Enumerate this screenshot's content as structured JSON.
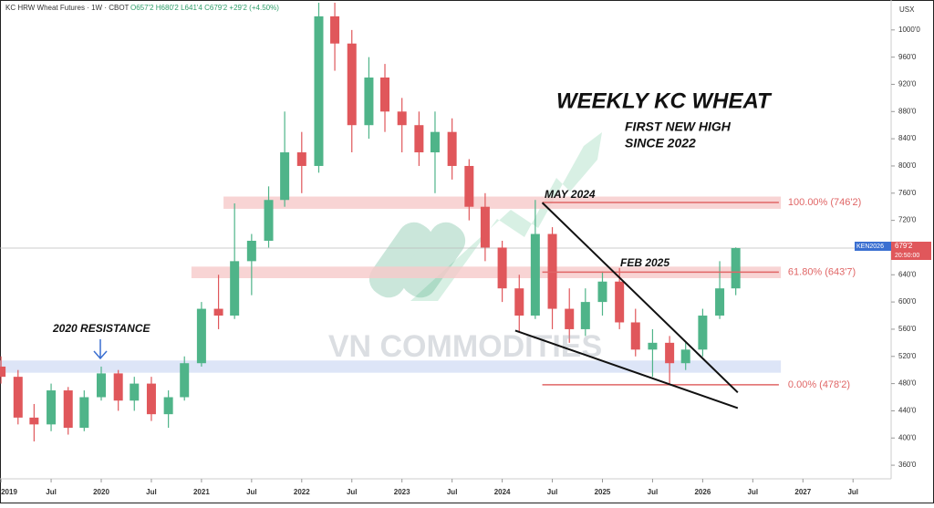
{
  "chart_data": {
    "type": "candlestick",
    "header": "KC HRW Wheat Futures · 1W · CBOT",
    "header_ohlc": "O657'2 H680'2 L641'4 C679'2 +29'2 (+4.50%)",
    "currency": "USX",
    "title": "WEEKLY KC WHEAT",
    "subtitle_lines": [
      "FIRST NEW HIGH",
      "SINCE 2022"
    ],
    "annotations": [
      "MAY 2024",
      "FEB 2025",
      "2020 RESISTANCE"
    ],
    "watermark": "VN COMMODITIES",
    "up_color": "#4fb489",
    "down_color": "#e0575b",
    "xlim": [
      2018.99,
      2027.88
    ],
    "ylim": [
      340,
      1044
    ],
    "xticks": [
      {
        "value": 2019,
        "label": "2019"
      },
      {
        "value": 2019.5,
        "label": "Jul"
      },
      {
        "value": 2020,
        "label": "2020"
      },
      {
        "value": 2020.5,
        "label": "Jul"
      },
      {
        "value": 2021,
        "label": "2021"
      },
      {
        "value": 2021.5,
        "label": "Jul"
      },
      {
        "value": 2022,
        "label": "2022"
      },
      {
        "value": 2022.5,
        "label": "Jul"
      },
      {
        "value": 2023,
        "label": "2023"
      },
      {
        "value": 2023.5,
        "label": "Jul"
      },
      {
        "value": 2024,
        "label": "2024"
      },
      {
        "value": 2024.5,
        "label": "Jul"
      },
      {
        "value": 2025,
        "label": "2025"
      },
      {
        "value": 2025.5,
        "label": "Jul"
      },
      {
        "value": 2026,
        "label": "2026"
      },
      {
        "value": 2026.5,
        "label": "Jul"
      },
      {
        "value": 2027,
        "label": "2027"
      },
      {
        "value": 2027.5,
        "label": "Jul"
      }
    ],
    "yticks": [
      {
        "value": 360,
        "label": "360'0"
      },
      {
        "value": 400,
        "label": "400'0"
      },
      {
        "value": 440,
        "label": "440'0"
      },
      {
        "value": 480,
        "label": "480'0"
      },
      {
        "value": 520,
        "label": "520'0"
      },
      {
        "value": 560,
        "label": "560'0"
      },
      {
        "value": 600,
        "label": "600'0"
      },
      {
        "value": 640,
        "label": "640'0"
      },
      {
        "value": 680,
        "label": "680'0"
      },
      {
        "value": 720,
        "label": "720'0"
      },
      {
        "value": 760,
        "label": "760'0"
      },
      {
        "value": 800,
        "label": "800'0"
      },
      {
        "value": 840,
        "label": "840'0"
      },
      {
        "value": 880,
        "label": "880'0"
      },
      {
        "value": 920,
        "label": "920'0"
      },
      {
        "value": 960,
        "label": "960'0"
      },
      {
        "value": 1000,
        "label": "1000'0"
      }
    ],
    "candles": {
      "x": [
        2019.0,
        2019.17,
        2019.33,
        2019.5,
        2019.67,
        2019.83,
        2020.0,
        2020.17,
        2020.33,
        2020.5,
        2020.67,
        2020.83,
        2021.0,
        2021.17,
        2021.33,
        2021.5,
        2021.67,
        2021.83,
        2022.0,
        2022.17,
        2022.33,
        2022.5,
        2022.67,
        2022.83,
        2023.0,
        2023.17,
        2023.33,
        2023.5,
        2023.67,
        2023.83,
        2024.0,
        2024.17,
        2024.33,
        2024.5,
        2024.67,
        2024.83,
        2025.0,
        2025.17,
        2025.33,
        2025.5,
        2025.67,
        2025.83,
        2026.0,
        2026.17,
        2026.33
      ],
      "open": [
        505,
        490,
        430,
        420,
        470,
        415,
        460,
        495,
        455,
        480,
        435,
        460,
        510,
        590,
        580,
        660,
        690,
        750,
        820,
        800,
        1020,
        980,
        860,
        930,
        880,
        860,
        820,
        850,
        800,
        740,
        680,
        620,
        580,
        700,
        590,
        560,
        600,
        630,
        570,
        530,
        540,
        510,
        530,
        580,
        620
      ],
      "high": [
        520,
        500,
        450,
        480,
        475,
        470,
        505,
        500,
        490,
        490,
        470,
        520,
        600,
        640,
        745,
        700,
        770,
        880,
        850,
        1040,
        1040,
        1000,
        960,
        950,
        900,
        880,
        880,
        870,
        810,
        760,
        690,
        640,
        750,
        710,
        620,
        620,
        645,
        650,
        590,
        560,
        550,
        540,
        590,
        660,
        680.25
      ],
      "low": [
        480,
        420,
        395,
        410,
        405,
        410,
        455,
        440,
        440,
        425,
        415,
        455,
        505,
        560,
        575,
        610,
        680,
        740,
        760,
        790,
        940,
        820,
        840,
        850,
        820,
        800,
        760,
        780,
        720,
        660,
        600,
        555,
        575,
        560,
        540,
        550,
        580,
        560,
        520,
        490,
        480,
        500,
        520,
        575,
        610
      ],
      "close": [
        490,
        430,
        420,
        470,
        415,
        460,
        495,
        455,
        480,
        435,
        460,
        510,
        590,
        580,
        660,
        690,
        750,
        820,
        800,
        1020,
        980,
        860,
        930,
        880,
        860,
        820,
        850,
        800,
        740,
        680,
        620,
        580,
        700,
        590,
        560,
        600,
        630,
        570,
        530,
        540,
        510,
        530,
        580,
        620,
        679.25
      ]
    },
    "zones": [
      {
        "from": 737,
        "to": 755,
        "x0": 2021.22,
        "color": "#f6c9c9"
      },
      {
        "from": 635,
        "to": 652,
        "x0": 2020.9,
        "color": "#f6c9c9"
      },
      {
        "from": 496,
        "to": 514,
        "x0": 2018.99,
        "color": "#d5def5"
      }
    ],
    "zone_x1": 2026.78,
    "levels": [
      {
        "value": 746.25,
        "label": "100.00% (746'2)"
      },
      {
        "value": 643.875,
        "label": "61.80% (643'7)"
      },
      {
        "value": 478.25,
        "label": "0.00% (478'2)"
      }
    ],
    "level_x": [
      2024.4,
      2026.76
    ],
    "level_color": "#e06666",
    "trendlines": [
      {
        "x": [
          2024.4,
          2026.35
        ],
        "y": [
          746,
          467
        ]
      },
      {
        "x": [
          2024.13,
          2026.35
        ],
        "y": [
          558,
          444
        ]
      }
    ],
    "price_tag": {
      "symbol": "KEN2026",
      "price": {
        "value": 679.25,
        "label": "679'2"
      },
      "time": "20:50:00"
    }
  }
}
